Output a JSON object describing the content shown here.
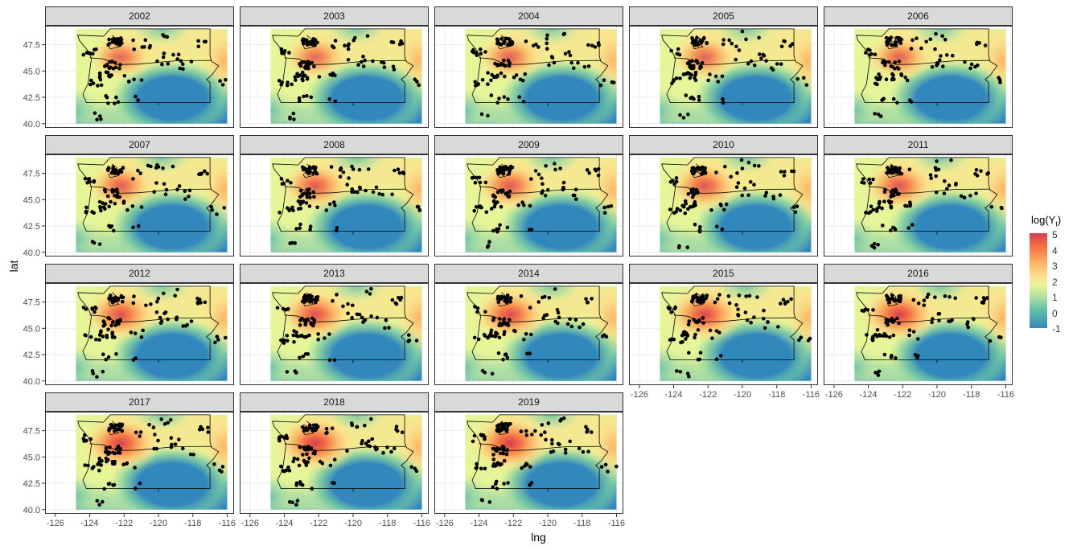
{
  "axes": {
    "xlabel": "lng",
    "ylabel": "lat",
    "x_ticks": [
      -126,
      -124,
      -122,
      -120,
      -118,
      -116
    ],
    "x_tick_labels": [
      "-126",
      "-124",
      "-122",
      "-120",
      "-118",
      "-116"
    ],
    "y_ticks": [
      40.0,
      42.5,
      45.0,
      47.5
    ],
    "y_tick_labels": [
      "40.0",
      "42.5",
      "45.0",
      "47.5"
    ],
    "xlim": [
      -126.6,
      -115.6
    ],
    "ylim": [
      39.6,
      49.3
    ]
  },
  "legend": {
    "title": "log(Y",
    "title_sub": "t",
    "title_close": ")",
    "ticks": [
      "5",
      "4",
      "3",
      "2",
      "1",
      "0",
      "-1"
    ],
    "values": [
      5,
      4,
      3,
      2,
      1,
      0,
      -1
    ],
    "range": [
      -1.2,
      5.2
    ],
    "colors": [
      "#3288bd",
      "#66c2a5",
      "#abdda4",
      "#e6f598",
      "#fee08b",
      "#fdae61",
      "#f46d43",
      "#d53e4f"
    ]
  },
  "chart_data": {
    "type": "heatmap",
    "facet_by": "year",
    "facets": [
      "2002",
      "2003",
      "2004",
      "2005",
      "2006",
      "2007",
      "2008",
      "2009",
      "2010",
      "2011",
      "2012",
      "2013",
      "2014",
      "2015",
      "2016",
      "2017",
      "2018",
      "2019"
    ],
    "raster_extent": {
      "lng": [
        -124.8,
        -116.0
      ],
      "lat": [
        40.0,
        49.0
      ]
    },
    "hotspot_intensity": [
      0.55,
      0.55,
      0.6,
      0.6,
      0.6,
      0.65,
      0.7,
      0.7,
      0.75,
      0.75,
      0.8,
      0.8,
      0.85,
      0.9,
      0.95,
      0.95,
      1.0,
      1.0
    ],
    "fill_var": "log(Yt)",
    "colors": {
      "high": "#d53e4f",
      "mid": "#e6f598",
      "low": "#3288bd"
    }
  },
  "colors": {
    "strip_bg": "#d9d9d9",
    "panel_border": "#333333",
    "grid": "#ebebeb",
    "point": "#000000"
  }
}
